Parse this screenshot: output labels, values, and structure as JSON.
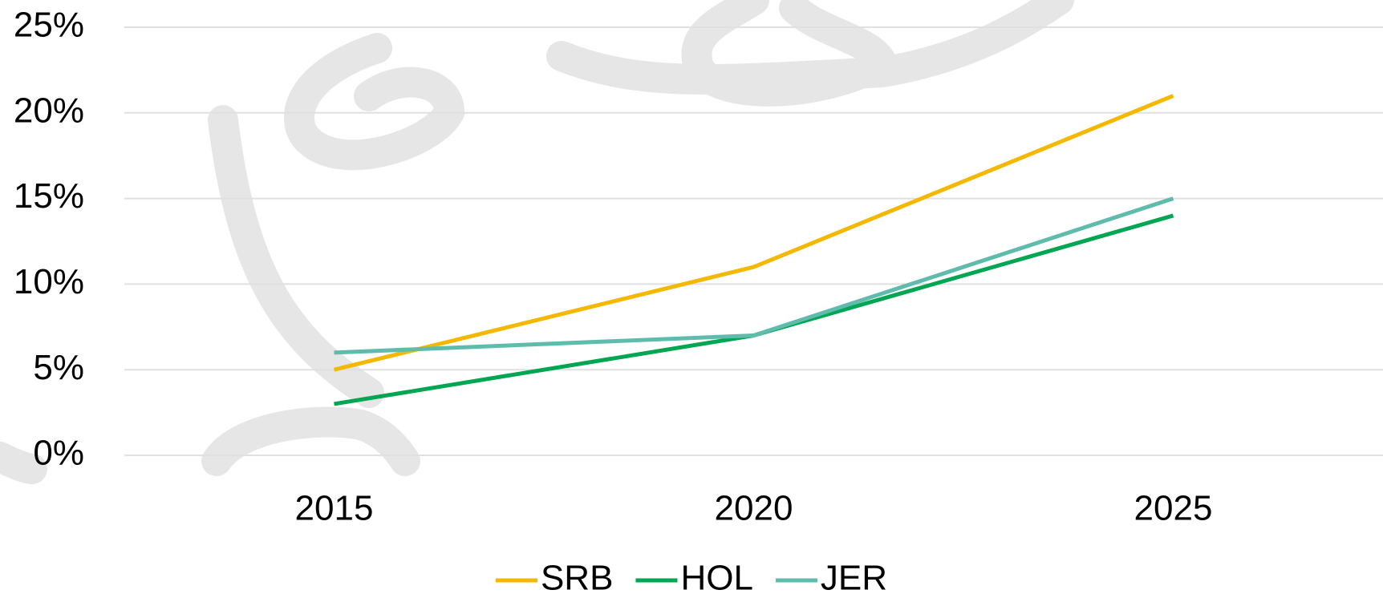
{
  "chart_data": {
    "type": "line",
    "categories": [
      "2015",
      "2020",
      "2025"
    ],
    "series": [
      {
        "name": "SRB",
        "color": "#f5b800",
        "values": [
          5,
          11,
          21
        ]
      },
      {
        "name": "HOL",
        "color": "#00a651",
        "values": [
          3,
          7,
          14
        ]
      },
      {
        "name": "JER",
        "color": "#5fbcad",
        "values": [
          6,
          7,
          15
        ]
      }
    ],
    "ylim": [
      0,
      25
    ],
    "yticks": [
      {
        "value": 0,
        "label": "0%"
      },
      {
        "value": 5,
        "label": "5%"
      },
      {
        "value": 10,
        "label": "10%"
      },
      {
        "value": 15,
        "label": "15%"
      },
      {
        "value": 20,
        "label": "20%"
      },
      {
        "value": 25,
        "label": "25%"
      }
    ],
    "grid": true,
    "legend": "bottom"
  }
}
